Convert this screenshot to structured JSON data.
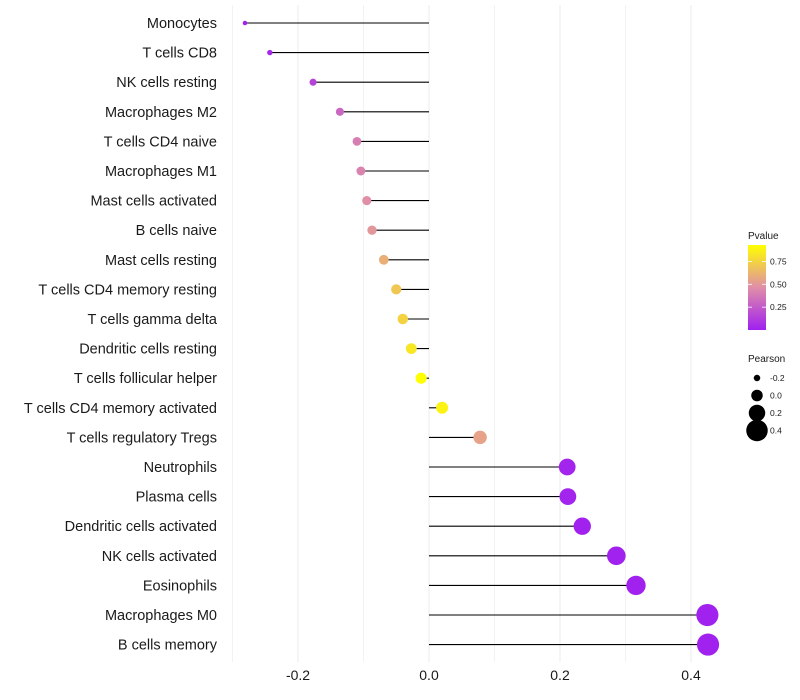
{
  "chart_data": {
    "type": "lollipop",
    "title": "",
    "xlabel": "",
    "ylabel": "",
    "xlim": [
      -0.3,
      0.43
    ],
    "x_ticks": [
      -0.2,
      0.0,
      0.2,
      0.4
    ],
    "x_tick_labels": [
      "-0.2",
      "0.0",
      "0.2",
      "0.4"
    ],
    "x_minor_gridlines": [
      -0.3,
      -0.1,
      0.1,
      0.3
    ],
    "grid": true,
    "baseline": 0.0,
    "categories": [
      "Monocytes",
      "T cells CD8",
      "NK cells resting",
      "Macrophages M2",
      "T cells CD4 naive",
      "Macrophages M1",
      "Mast cells activated",
      "B cells naive",
      "Mast cells resting",
      "T cells CD4 memory resting",
      "T cells gamma delta",
      "Dendritic cells resting",
      "T cells follicular helper",
      "T cells CD4 memory activated",
      "T cells regulatory  Tregs ",
      "Neutrophils",
      "Plasma cells",
      "Dendritic cells activated",
      "NK cells activated",
      "Eosinophils",
      "Macrophages M0",
      "B cells memory"
    ],
    "pearson": [
      -0.281,
      -0.243,
      -0.177,
      -0.136,
      -0.11,
      -0.104,
      -0.095,
      -0.087,
      -0.069,
      -0.05,
      -0.04,
      -0.027,
      -0.012,
      0.02,
      0.078,
      0.211,
      0.212,
      0.234,
      0.286,
      0.316,
      0.425,
      0.426
    ],
    "pvalue": [
      0.01,
      0.04,
      0.15,
      0.3,
      0.4,
      0.42,
      0.47,
      0.5,
      0.6,
      0.7,
      0.75,
      0.83,
      0.93,
      0.88,
      0.55,
      0.02,
      0.02,
      0.01,
      0.01,
      0.01,
      0.01,
      0.01
    ],
    "legend": {
      "color": {
        "title": "Pvalue",
        "ticks": [
          0.25,
          0.5,
          0.75
        ],
        "tick_labels": [
          "0.25",
          "0.50",
          "0.75"
        ],
        "range": [
          0.0,
          0.93
        ],
        "low_color": "#A020F0",
        "mid_color": "#E08EA8",
        "high_color": "#FFFF00"
      },
      "size": {
        "title": "Pearson",
        "values": [
          -0.2,
          0.0,
          0.2,
          0.4
        ],
        "labels": [
          "-0.2",
          "0.0",
          "0.2",
          "0.4"
        ]
      },
      "position": "right"
    }
  },
  "colors": {
    "stem": "#000000",
    "grid": "#ebebeb"
  }
}
